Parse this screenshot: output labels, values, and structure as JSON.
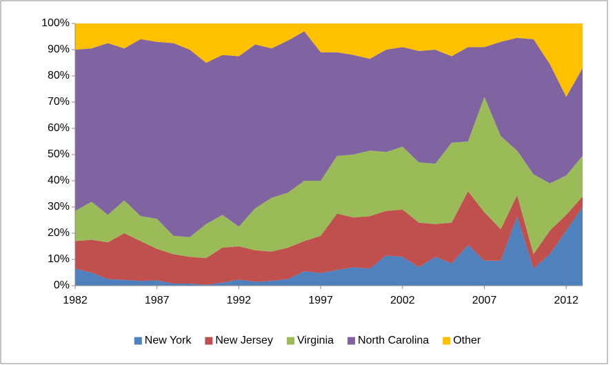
{
  "chart_data": {
    "type": "stacked_area_percent",
    "x": [
      1982,
      1983,
      1984,
      1985,
      1986,
      1987,
      1988,
      1989,
      1990,
      1991,
      1992,
      1993,
      1994,
      1995,
      1996,
      1997,
      1998,
      1999,
      2000,
      2001,
      2002,
      2003,
      2004,
      2005,
      2006,
      2007,
      2008,
      2009,
      2010,
      2011,
      2012,
      2013
    ],
    "xlim": [
      1982,
      2013
    ],
    "xticks": [
      1982,
      1987,
      1992,
      1997,
      2002,
      2007,
      2012
    ],
    "ylim": [
      0,
      100
    ],
    "yticks": [
      {
        "value": 0,
        "label": "0%"
      },
      {
        "value": 10,
        "label": "10%"
      },
      {
        "value": 20,
        "label": "20%"
      },
      {
        "value": 30,
        "label": "30%"
      },
      {
        "value": 40,
        "label": "40%"
      },
      {
        "value": 50,
        "label": "50%"
      },
      {
        "value": 60,
        "label": "60%"
      },
      {
        "value": 70,
        "label": "70%"
      },
      {
        "value": 80,
        "label": "80%"
      },
      {
        "value": 90,
        "label": "90%"
      },
      {
        "value": 100,
        "label": "100%"
      }
    ],
    "legend": "bottom",
    "series": [
      {
        "name": "New York",
        "color": "#4f81bd",
        "values": [
          6.5,
          5,
          2.5,
          2.2,
          1.8,
          2,
          0.8,
          0.8,
          0.3,
          1.2,
          2.3,
          1.5,
          1.8,
          2.5,
          5.5,
          4.8,
          6,
          7,
          6.5,
          11.5,
          11,
          7,
          11,
          8.5,
          15.5,
          9.5,
          9.5,
          26.5,
          6.5,
          12,
          21,
          30
        ]
      },
      {
        "name": "New Jersey",
        "color": "#c0504d",
        "values": [
          10.5,
          12.5,
          14,
          17.8,
          15.2,
          12,
          11.2,
          10.2,
          10.2,
          13.3,
          12.7,
          12,
          11.2,
          12,
          11.5,
          14.2,
          21.5,
          19,
          20,
          17,
          18,
          17,
          12.5,
          15.5,
          20.5,
          18.5,
          12,
          8,
          5.5,
          9,
          6,
          4
        ]
      },
      {
        "name": "Virginia",
        "color": "#9bbb59",
        "values": [
          11.5,
          14.5,
          10.5,
          12.5,
          9.5,
          11.5,
          7,
          7.5,
          13,
          12.5,
          7.5,
          16,
          20.5,
          21,
          23,
          21,
          22,
          24,
          25,
          22.5,
          24,
          23,
          23,
          30.5,
          19,
          44,
          35.5,
          17,
          30.5,
          18,
          15,
          15.5
        ]
      },
      {
        "name": "North Carolina",
        "color": "#8064a2",
        "values": [
          61.5,
          58.5,
          65.5,
          58,
          67.5,
          67.5,
          73.5,
          71.5,
          61.5,
          61,
          65,
          62.5,
          57,
          58,
          57,
          49,
          39.5,
          38,
          35,
          39,
          38,
          42.5,
          43.5,
          33,
          36,
          19,
          36,
          43,
          51.5,
          45.5,
          30,
          33.5
        ]
      },
      {
        "name": "Other",
        "color": "#ffc000",
        "values": [
          10,
          9.5,
          7.5,
          9.5,
          6,
          7,
          7.5,
          10,
          15,
          12,
          12.5,
          8,
          9.5,
          6.5,
          3,
          11,
          11,
          12,
          13.5,
          10,
          9,
          10.5,
          10,
          12.5,
          9,
          9,
          7,
          5.5,
          6,
          15.5,
          28,
          17
        ]
      }
    ]
  }
}
